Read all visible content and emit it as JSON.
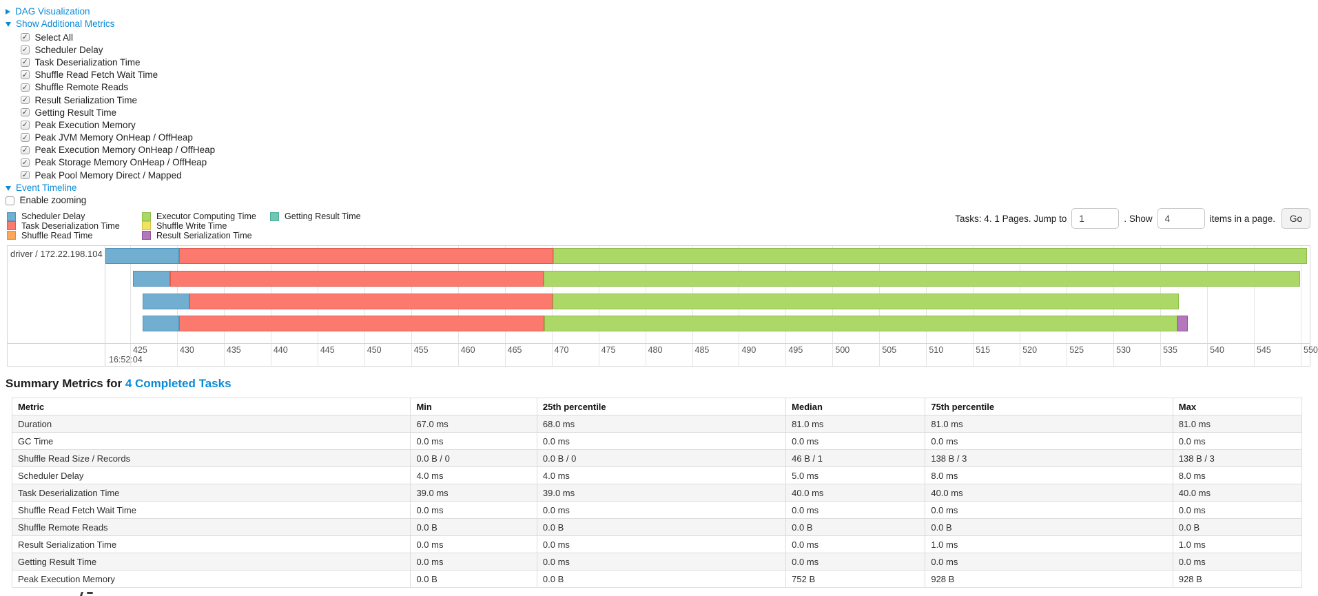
{
  "accent": {
    "link_blue": "#0a8ad6"
  },
  "icons": {
    "checkmark": "✓",
    "triangle_right": "▶",
    "triangle_down": "▼"
  },
  "controls": {
    "dag_toggle": "DAG Visualization",
    "metrics_toggle": "Show Additional Metrics",
    "timeline_toggle": "Event Timeline",
    "enable_zooming_label": "Enable zooming",
    "enable_zooming_checked": false,
    "metric_options": [
      {
        "label": "Select All",
        "checked": true
      },
      {
        "label": "Scheduler Delay",
        "checked": true
      },
      {
        "label": "Task Deserialization Time",
        "checked": true
      },
      {
        "label": "Shuffle Read Fetch Wait Time",
        "checked": true
      },
      {
        "label": "Shuffle Remote Reads",
        "checked": true
      },
      {
        "label": "Result Serialization Time",
        "checked": true
      },
      {
        "label": "Getting Result Time",
        "checked": true
      },
      {
        "label": "Peak Execution Memory",
        "checked": true
      },
      {
        "label": "Peak JVM Memory OnHeap / OffHeap",
        "checked": true
      },
      {
        "label": "Peak Execution Memory OnHeap / OffHeap",
        "checked": true
      },
      {
        "label": "Peak Storage Memory OnHeap / OffHeap",
        "checked": true
      },
      {
        "label": "Peak Pool Memory Direct / Mapped",
        "checked": true
      }
    ]
  },
  "legend": {
    "columns": [
      [
        {
          "key": "scheduler_delay",
          "label": "Scheduler Delay"
        },
        {
          "key": "task_deserialization",
          "label": "Task Deserialization Time"
        },
        {
          "key": "shuffle_read",
          "label": "Shuffle Read Time"
        }
      ],
      [
        {
          "key": "executor_computing",
          "label": "Executor Computing Time"
        },
        {
          "key": "shuffle_write",
          "label": "Shuffle Write Time"
        },
        {
          "key": "result_serialization",
          "label": "Result Serialization Time"
        }
      ],
      [
        {
          "key": "getting_result",
          "label": "Getting Result Time"
        }
      ]
    ],
    "colors": {
      "scheduler_delay": {
        "fill": "#72AECF",
        "border": "#4E92BA"
      },
      "task_deserialization": {
        "fill": "#FB7A6D",
        "border": "#DE5B4F"
      },
      "shuffle_read": {
        "fill": "#FAA857",
        "border": "#DE8D3F"
      },
      "executor_computing": {
        "fill": "#ABD867",
        "border": "#8CBE45"
      },
      "shuffle_write": {
        "fill": "#F2E25F",
        "border": "#D4C443"
      },
      "result_serialization": {
        "fill": "#B377BC",
        "border": "#91519C"
      },
      "getting_result": {
        "fill": "#6FC8B5",
        "border": "#4BAD97"
      }
    }
  },
  "pagination": {
    "tasks_text": "Tasks: 4. 1 Pages. Jump to",
    "jump_value": "1",
    "show_text": ". Show",
    "show_value": "4",
    "items_text": "items in a page.",
    "go_label": "Go"
  },
  "timeline_chart": {
    "group_label": "driver / 172.22.198.104",
    "axis_major_label": "16:52:04",
    "axis_ticks": [
      425,
      430,
      435,
      440,
      445,
      450,
      455,
      460,
      465,
      470,
      475,
      480,
      485,
      490,
      495,
      500,
      505,
      510,
      515,
      520,
      525,
      530,
      535,
      540,
      545,
      550
    ],
    "bars": [
      {
        "segments": [
          {
            "key": "scheduler_delay",
            "from": 0,
            "to": 6.12
          },
          {
            "key": "task_deserialization",
            "from": 6.12,
            "to": 37.16
          },
          {
            "key": "executor_computing",
            "from": 37.16,
            "to": 99.77
          }
        ]
      },
      {
        "segments": [
          {
            "key": "scheduler_delay",
            "from": 2.29,
            "to": 5.37
          },
          {
            "key": "task_deserialization",
            "from": 5.37,
            "to": 36.36
          },
          {
            "key": "executor_computing",
            "from": 36.36,
            "to": 99.2
          }
        ]
      },
      {
        "segments": [
          {
            "key": "scheduler_delay",
            "from": 3.09,
            "to": 6.98
          },
          {
            "key": "task_deserialization",
            "from": 6.98,
            "to": 37.11
          },
          {
            "key": "executor_computing",
            "from": 37.11,
            "to": 89.14
          }
        ]
      },
      {
        "segments": [
          {
            "key": "scheduler_delay",
            "from": 3.09,
            "to": 6.12
          },
          {
            "key": "task_deserialization",
            "from": 6.12,
            "to": 36.42
          },
          {
            "key": "executor_computing",
            "from": 36.42,
            "to": 89.02
          },
          {
            "key": "result_serialization",
            "from": 89.02,
            "to": 89.88
          }
        ]
      }
    ]
  },
  "summary": {
    "heading_prefix": "Summary Metrics for ",
    "heading_link": "4 Completed Tasks",
    "table": {
      "headers": [
        "Metric",
        "Min",
        "25th percentile",
        "Median",
        "75th percentile",
        "Max"
      ],
      "rows": [
        [
          "Duration",
          "67.0 ms",
          "68.0 ms",
          "81.0 ms",
          "81.0 ms",
          "81.0 ms"
        ],
        [
          "GC Time",
          "0.0 ms",
          "0.0 ms",
          "0.0 ms",
          "0.0 ms",
          "0.0 ms"
        ],
        [
          "Shuffle Read Size / Records",
          "0.0 B / 0",
          "0.0 B / 0",
          "46 B / 1",
          "138 B / 3",
          "138 B / 3"
        ],
        [
          "Scheduler Delay",
          "4.0 ms",
          "4.0 ms",
          "5.0 ms",
          "8.0 ms",
          "8.0 ms"
        ],
        [
          "Task Deserialization Time",
          "39.0 ms",
          "39.0 ms",
          "40.0 ms",
          "40.0 ms",
          "40.0 ms"
        ],
        [
          "Shuffle Read Fetch Wait Time",
          "0.0 ms",
          "0.0 ms",
          "0.0 ms",
          "0.0 ms",
          "0.0 ms"
        ],
        [
          "Shuffle Remote Reads",
          "0.0 B",
          "0.0 B",
          "0.0 B",
          "0.0 B",
          "0.0 B"
        ],
        [
          "Result Serialization Time",
          "0.0 ms",
          "0.0 ms",
          "0.0 ms",
          "1.0 ms",
          "1.0 ms"
        ],
        [
          "Getting Result Time",
          "0.0 ms",
          "0.0 ms",
          "0.0 ms",
          "0.0 ms",
          "0.0 ms"
        ],
        [
          "Peak Execution Memory",
          "0.0 B",
          "0.0 B",
          "752 B",
          "928 B",
          "928 B"
        ]
      ]
    }
  }
}
